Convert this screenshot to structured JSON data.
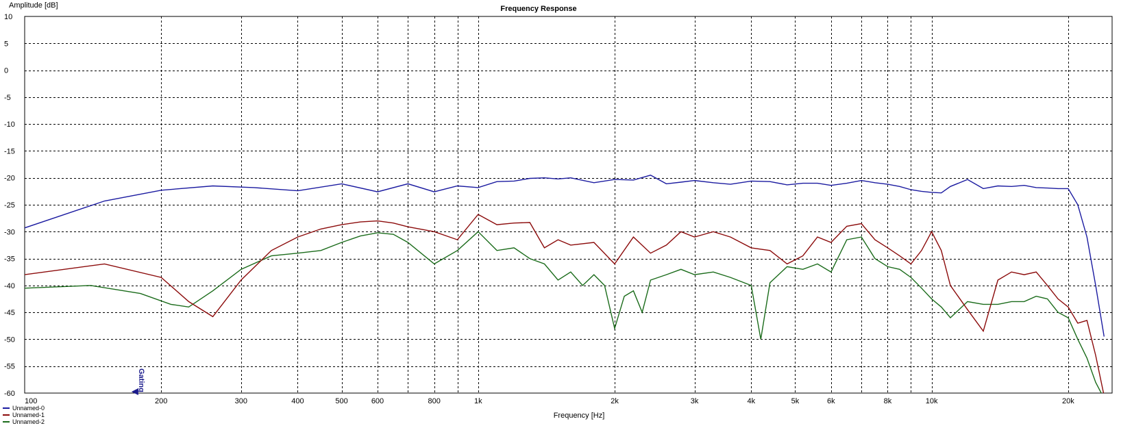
{
  "chart_data": {
    "type": "line",
    "title": "Frequency Response",
    "xlabel": "Frequency [Hz]",
    "ylabel": "Amplitude [dB]",
    "x_scale": "log",
    "xlim": [
      100,
      25000
    ],
    "ylim": [
      -60,
      10
    ],
    "grid": true,
    "legend_position": "bottom-left",
    "x_ticks": [
      {
        "value": 100,
        "label": "100"
      },
      {
        "value": 200,
        "label": "200"
      },
      {
        "value": 300,
        "label": "300"
      },
      {
        "value": 400,
        "label": "400"
      },
      {
        "value": 500,
        "label": "500"
      },
      {
        "value": 600,
        "label": "600"
      },
      {
        "value": 800,
        "label": "800"
      },
      {
        "value": 1000,
        "label": "1k"
      },
      {
        "value": 2000,
        "label": "2k"
      },
      {
        "value": 3000,
        "label": "3k"
      },
      {
        "value": 4000,
        "label": "4k"
      },
      {
        "value": 5000,
        "label": "5k"
      },
      {
        "value": 6000,
        "label": "6k"
      },
      {
        "value": 8000,
        "label": "8k"
      },
      {
        "value": 10000,
        "label": "10k"
      },
      {
        "value": 20000,
        "label": "20k"
      }
    ],
    "y_ticks": [
      10,
      5,
      0,
      -5,
      -10,
      -15,
      -20,
      -25,
      -30,
      -35,
      -40,
      -45,
      -50,
      -55,
      -60
    ],
    "marker": {
      "label": "Gating",
      "x": 175,
      "color": "#1c1c8c"
    },
    "series": [
      {
        "name": "Unnamed-0",
        "color": "#1a1aa0",
        "x": [
          100,
          150,
          200,
          260,
          320,
          400,
          500,
          600,
          700,
          800,
          900,
          1000,
          1100,
          1200,
          1300,
          1400,
          1500,
          1600,
          1800,
          2000,
          2200,
          2400,
          2600,
          2800,
          3000,
          3300,
          3600,
          4000,
          4400,
          4800,
          5200,
          5600,
          6000,
          6500,
          7000,
          7500,
          8000,
          8500,
          9000,
          9500,
          10000,
          10500,
          11000,
          12000,
          13000,
          14000,
          15000,
          16000,
          17000,
          18000,
          19000,
          20000,
          21000,
          22000,
          23000,
          24000
        ],
        "values": [
          -29.3,
          -24.3,
          -22.3,
          -21.5,
          -21.8,
          -22.4,
          -21.1,
          -22.6,
          -21.1,
          -22.6,
          -21.5,
          -21.8,
          -20.7,
          -20.6,
          -20.1,
          -20.0,
          -20.2,
          -20.0,
          -20.9,
          -20.3,
          -20.4,
          -19.5,
          -21.1,
          -20.8,
          -20.5,
          -20.9,
          -21.2,
          -20.6,
          -20.7,
          -21.3,
          -21.0,
          -21.0,
          -21.4,
          -21.0,
          -20.5,
          -20.9,
          -21.2,
          -21.6,
          -22.2,
          -22.5,
          -22.7,
          -22.8,
          -21.6,
          -20.3,
          -22.0,
          -21.5,
          -21.6,
          -21.4,
          -21.8,
          -21.9,
          -22.0,
          -22.0,
          -25.0,
          -31.0,
          -40.0,
          -49.5
        ]
      },
      {
        "name": "Unnamed-1",
        "color": "#8b0a0a",
        "x": [
          100,
          150,
          200,
          230,
          260,
          300,
          350,
          400,
          450,
          500,
          550,
          600,
          650,
          700,
          800,
          900,
          1000,
          1100,
          1200,
          1300,
          1400,
          1500,
          1600,
          1800,
          2000,
          2200,
          2400,
          2600,
          2800,
          3000,
          3300,
          3600,
          4000,
          4400,
          4800,
          5200,
          5600,
          6000,
          6500,
          7000,
          7500,
          8000,
          8500,
          9000,
          9500,
          10000,
          10500,
          11000,
          12000,
          13000,
          14000,
          15000,
          16000,
          17000,
          18000,
          19000,
          20000,
          21000,
          22000,
          23000,
          24000
        ],
        "values": [
          -38.0,
          -36.0,
          -38.5,
          -43.0,
          -45.8,
          -39.0,
          -33.5,
          -31.0,
          -29.5,
          -28.7,
          -28.2,
          -28.0,
          -28.4,
          -29.1,
          -30.0,
          -31.5,
          -26.8,
          -28.7,
          -28.4,
          -28.3,
          -33.0,
          -31.5,
          -32.5,
          -32.0,
          -36.0,
          -31.0,
          -34.0,
          -32.5,
          -30.0,
          -31.0,
          -30.0,
          -31.0,
          -33.0,
          -33.5,
          -36.0,
          -34.5,
          -31.0,
          -32.0,
          -29.0,
          -28.5,
          -31.5,
          -33.0,
          -34.5,
          -36.0,
          -33.5,
          -30.0,
          -33.5,
          -40.0,
          -44.5,
          -48.5,
          -39.0,
          -37.5,
          -38.0,
          -37.5,
          -40.0,
          -42.5,
          -44.0,
          -47.0,
          -46.5,
          -53.0,
          -60.5
        ]
      },
      {
        "name": "Unnamed-2",
        "color": "#1a6b1a",
        "x": [
          100,
          140,
          180,
          210,
          230,
          260,
          300,
          350,
          400,
          450,
          500,
          550,
          600,
          650,
          700,
          800,
          900,
          1000,
          1100,
          1200,
          1300,
          1400,
          1500,
          1600,
          1700,
          1800,
          1900,
          2000,
          2100,
          2200,
          2300,
          2400,
          2600,
          2800,
          3000,
          3300,
          3600,
          4000,
          4200,
          4400,
          4800,
          5200,
          5600,
          6000,
          6500,
          7000,
          7500,
          8000,
          8500,
          9000,
          9500,
          10000,
          10500,
          11000,
          12000,
          13000,
          14000,
          15000,
          16000,
          17000,
          18000,
          19000,
          20000,
          21000,
          22000,
          23000,
          24000
        ],
        "values": [
          -40.5,
          -40.0,
          -41.5,
          -43.5,
          -44.0,
          -41.0,
          -37.0,
          -34.5,
          -34.0,
          -33.5,
          -32.0,
          -30.8,
          -30.2,
          -30.5,
          -32.0,
          -36.0,
          -33.5,
          -30.0,
          -33.5,
          -33.0,
          -35.0,
          -36.0,
          -39.0,
          -37.5,
          -40.0,
          -38.0,
          -40.0,
          -48.0,
          -42.0,
          -41.0,
          -45.0,
          -39.0,
          -38.0,
          -37.0,
          -38.0,
          -37.5,
          -38.5,
          -40.0,
          -50.0,
          -39.5,
          -36.5,
          -37.0,
          -36.0,
          -37.5,
          -31.5,
          -31.0,
          -35.0,
          -36.5,
          -37.0,
          -38.5,
          -40.5,
          -42.5,
          -44.0,
          -46.0,
          -43.0,
          -43.5,
          -43.5,
          -43.0,
          -43.0,
          -42.0,
          -42.5,
          -45.0,
          -46.0,
          -50.0,
          -53.5,
          -58.0,
          -61.0
        ]
      }
    ]
  }
}
